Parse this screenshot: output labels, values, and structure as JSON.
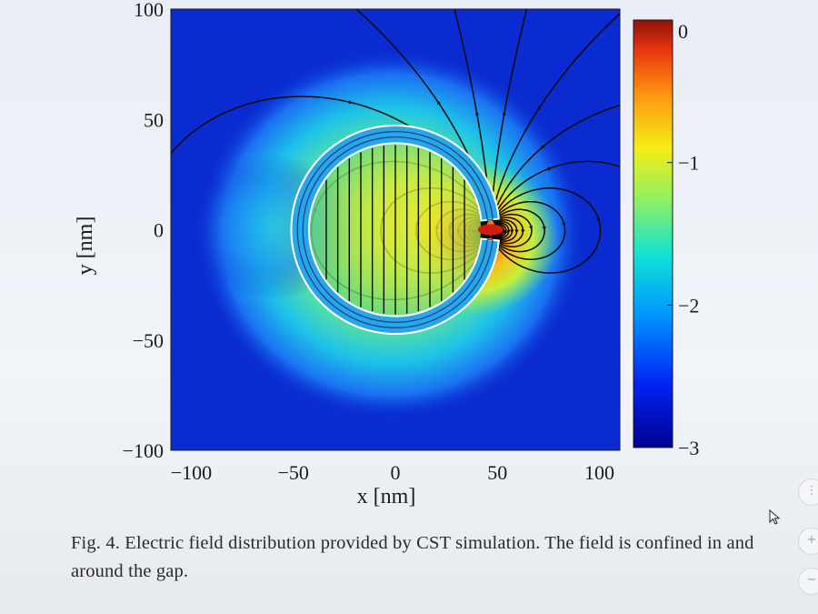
{
  "chart_data": {
    "type": "heatmap",
    "title": "",
    "xlabel": "x [nm]",
    "ylabel": "y [nm]",
    "xlim": [
      -110,
      110
    ],
    "ylim": [
      -100,
      100
    ],
    "x_ticks": [
      -100,
      -50,
      0,
      50,
      100
    ],
    "y_ticks": [
      100,
      50,
      0,
      -50,
      -100
    ],
    "colorbar": {
      "range": [
        -3,
        0
      ],
      "ticks": [
        0,
        -1,
        -2,
        -3
      ],
      "colormap": "jet"
    },
    "overlay": "electric field streamlines",
    "structure": "split-ring resonator with gap on the right at y = 0"
  },
  "ui": {
    "x_tick_labels": [
      "−100",
      "−50",
      "0",
      "50",
      "100"
    ],
    "y_tick_labels": [
      "100",
      "50",
      "0",
      "−50",
      "−100"
    ],
    "colorbar_tick_labels": [
      "0",
      "−1",
      "−2",
      "−3"
    ],
    "xlabel": "x [nm]",
    "ylabel": "y [nm]"
  },
  "caption": {
    "text": "Fig. 4. Electric field distribution provided by CST simulation. The field is confined in and around the gap."
  },
  "colors": {
    "background": "#0a2bd0",
    "field_high": "#c81e10",
    "ring": "#2aa6e8",
    "streamline": "#0b0b0b"
  }
}
